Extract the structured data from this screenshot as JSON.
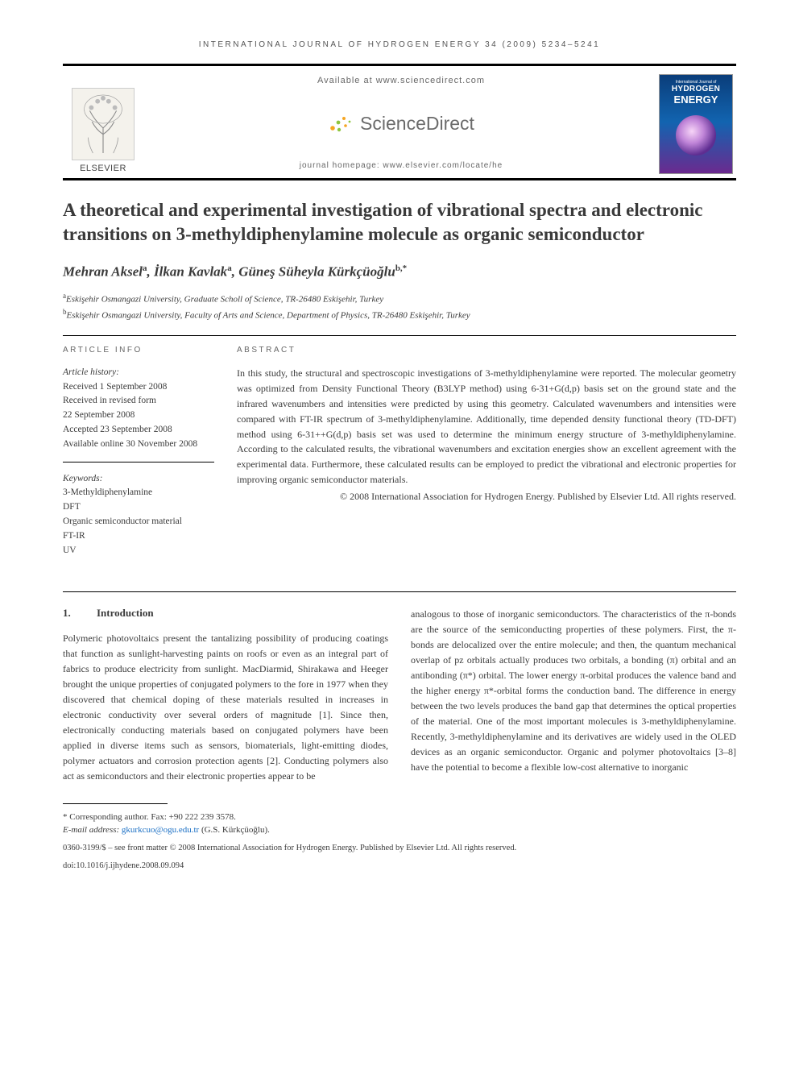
{
  "running_head": "INTERNATIONAL JOURNAL OF HYDROGEN ENERGY 34 (2009) 5234–5241",
  "header": {
    "available_at": "Available at www.sciencedirect.com",
    "sd_brand": "ScienceDirect",
    "homepage": "journal homepage: www.elsevier.com/locate/he",
    "elsevier": "ELSEVIER",
    "cover_line1": "International Journal of",
    "cover_line2": "HYDROGEN",
    "cover_line3": "ENERGY"
  },
  "title": "A theoretical and experimental investigation of vibrational spectra and electronic transitions on 3-methyldiphenylamine molecule as organic semiconductor",
  "authors_html": "Mehran Aksel<sup>a</sup>, İlkan Kavlak<sup>a</sup>, Güneş Süheyla Kürkçüoğlu<sup>b,*</sup>",
  "affiliations": [
    {
      "sup": "a",
      "text": "Eskişehir Osmangazi University, Graduate Scholl of Science, TR-26480 Eskişehir, Turkey"
    },
    {
      "sup": "b",
      "text": "Eskişehir Osmangazi University, Faculty of Arts and Science, Department of Physics, TR-26480 Eskişehir, Turkey"
    }
  ],
  "article_info": {
    "label": "ARTICLE INFO",
    "history_title": "Article history:",
    "history": [
      "Received 1 September 2008",
      "Received in revised form",
      "22 September 2008",
      "Accepted 23 September 2008",
      "Available online 30 November 2008"
    ],
    "keywords_title": "Keywords:",
    "keywords": [
      "3-Methyldiphenylamine",
      "DFT",
      "Organic semiconductor material",
      "FT-IR",
      "UV"
    ]
  },
  "abstract": {
    "label": "ABSTRACT",
    "text": "In this study, the structural and spectroscopic investigations of 3-methyldiphenylamine were reported. The molecular geometry was optimized from Density Functional Theory (B3LYP method) using 6-31+G(d,p) basis set on the ground state and the infrared wavenumbers and intensities were predicted by using this geometry. Calculated wavenumbers and intensities were compared with FT-IR spectrum of 3-methyldiphenylamine. Additionally, time depended density functional theory (TD-DFT) method using 6-31++G(d,p) basis set was used to determine the minimum energy structure of 3-methyldiphenylamine. According to the calculated results, the vibrational wavenumbers and excitation energies show an excellent agreement with the experimental data. Furthermore, these calculated results can be employed to predict the vibrational and electronic properties for improving organic semiconductor materials.",
    "copyright": "© 2008 International Association for Hydrogen Energy. Published by Elsevier Ltd. All rights reserved."
  },
  "intro": {
    "num": "1.",
    "heading": "Introduction",
    "col1": "Polymeric photovoltaics present the tantalizing possibility of producing coatings that function as sunlight-harvesting paints on roofs or even as an integral part of fabrics to produce electricity from sunlight. MacDiarmid, Shirakawa and Heeger brought the unique properties of conjugated polymers to the fore in 1977 when they discovered that chemical doping of these materials resulted in increases in electronic conductivity over several orders of magnitude ",
    "ref1": "[1]",
    "col1b": ". Since then, electronically conducting materials based on conjugated polymers have been applied in diverse items such as sensors, biomaterials, light-emitting diodes, polymer actuators and corrosion protection agents ",
    "ref2": "[2]",
    "col1c": ". Conducting polymers also act as semiconductors and their electronic properties appear to be",
    "col2": "analogous to those of inorganic semiconductors. The characteristics of the π-bonds are the source of the semiconducting properties of these polymers. First, the π-bonds are delocalized over the entire molecule; and then, the quantum mechanical overlap of pz orbitals actually produces two orbitals, a bonding (π) orbital and an antibonding (π*) orbital. The lower energy π-orbital produces the valence band and the higher energy π*-orbital forms the conduction band. The difference in energy between the two levels produces the band gap that determines the optical properties of the material. One of the most important molecules is 3-methyldiphenylamine. Recently, 3-methyldiphenylamine and its derivatives are widely used in the OLED devices as an organic semiconductor. Organic and polymer photovoltaics ",
    "ref3": "[3–8]",
    "col2b": " have the potential to become a flexible low-cost alternative to inorganic"
  },
  "footer": {
    "corr": "* Corresponding author. Fax: +90 222 239 3578.",
    "email_label": "E-mail address: ",
    "email": "gkurkcuo@ogu.edu.tr",
    "email_suffix": " (G.S. Kürkçüoğlu).",
    "line1": "0360-3199/$ – see front matter © 2008 International Association for Hydrogen Energy. Published by Elsevier Ltd. All rights reserved.",
    "line2": "doi:10.1016/j.ijhydene.2008.09.094"
  },
  "colors": {
    "text": "#3a3a3a",
    "ref_link": "#1bb08e",
    "email_link": "#1a6fc4",
    "sd_orange": "#f5a623",
    "sd_green": "#8fc63f"
  }
}
